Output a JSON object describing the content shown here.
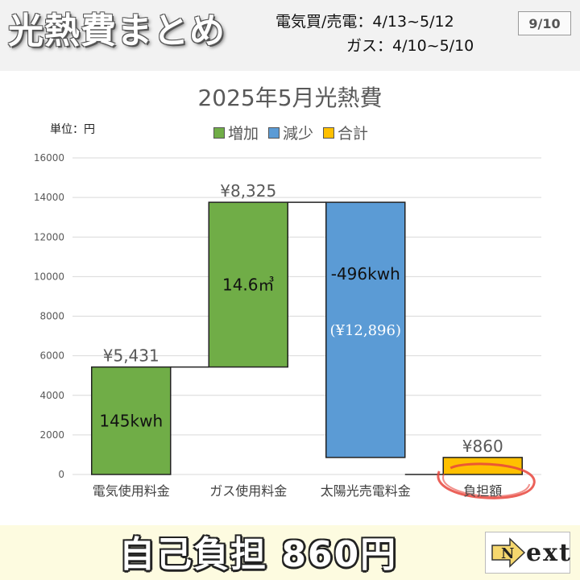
{
  "header": {
    "title": "光熱費まとめ",
    "period_line1": "電気買/売電：4/13~5/12",
    "period_line2": "ガス：4/10~5/10",
    "page_badge": "9/10"
  },
  "chart_data": {
    "type": "waterfall",
    "title": "2025年5月光熱費",
    "unit_label": "単位：円",
    "legend": [
      {
        "name": "増加",
        "color": "#70ad47"
      },
      {
        "name": "減少",
        "color": "#5b9bd5"
      },
      {
        "name": "合計",
        "color": "#ffc000"
      }
    ],
    "ylim": [
      0,
      16000
    ],
    "yticks": [
      "0",
      "2000",
      "4000",
      "6000",
      "8000",
      "10000",
      "12000",
      "14000",
      "16000"
    ],
    "ytick_values": [
      0,
      2000,
      4000,
      6000,
      8000,
      10000,
      12000,
      14000,
      16000
    ],
    "grid": true,
    "categories": [
      "電気使用料金",
      "ガス使用料金",
      "太陽光売電料金",
      "負担額"
    ],
    "steps": [
      {
        "category": "電気使用料金",
        "kind": "増加",
        "start": 0,
        "end": 5431,
        "value_label": "¥5,431",
        "inner_label": "145kwh",
        "inner_label2": ""
      },
      {
        "category": "ガス使用料金",
        "kind": "増加",
        "start": 5431,
        "end": 13756,
        "value_label": "¥8,325",
        "inner_label": "14.6㎥",
        "inner_label2": ""
      },
      {
        "category": "太陽光売電料金",
        "kind": "減少",
        "start": 13756,
        "end": 860,
        "value_label": "",
        "inner_label": "-496kwh",
        "inner_label2": "(¥12,896)"
      },
      {
        "category": "負担額",
        "kind": "合計",
        "start": 0,
        "end": 860,
        "value_label": "¥860",
        "inner_label": "",
        "inner_label2": ""
      }
    ],
    "highlight_color": "#e8453c"
  },
  "footer": {
    "summary": "自己負担 860円",
    "next_label": "ext",
    "next_initial": "N"
  }
}
